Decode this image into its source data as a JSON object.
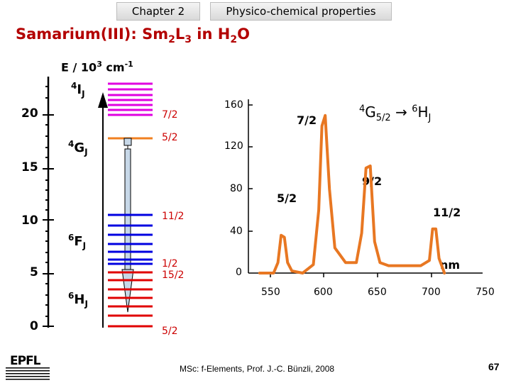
{
  "header": {
    "chapter": "Chapter 2",
    "section": "Physico-chemical properties"
  },
  "title": {
    "pre": "Samarium(III): Sm",
    "s1": "2",
    "mid": "L",
    "s2": "3",
    "mid2": " in H",
    "s3": "2",
    "post": "O"
  },
  "energy_axis": {
    "label_pre": "E / 10",
    "label_exp": "3",
    "label_mid": " cm",
    "label_exp2": "-1",
    "ticks": [
      "20",
      "15",
      "10",
      "5",
      "0"
    ]
  },
  "terms": {
    "i": {
      "sup": "4",
      "main": "I",
      "sub": "J"
    },
    "g": {
      "sup": "4",
      "main": "G",
      "sub": "J"
    },
    "f": {
      "sup": "6",
      "main": "F",
      "sub": "J"
    },
    "h": {
      "sup": "6",
      "main": "H",
      "sub": "J"
    }
  },
  "level_labels": [
    "7/2",
    "5/2",
    "11/2",
    "1/2",
    "15/2",
    "5/2"
  ],
  "colors": {
    "magenta": "#e000e0",
    "orange": "#f08020",
    "blue": "#0000e0",
    "red": "#e00000",
    "spectrum": "#e87722"
  },
  "spectrum": {
    "transition": {
      "sup1": "4",
      "main1": "G",
      "sub1": "5/2",
      "arrow": "→",
      "sup2": "6",
      "main2": "H",
      "sub2": "J"
    },
    "y_ticks": [
      "160",
      "120",
      "80",
      "40",
      "0"
    ],
    "x_ticks": [
      "550",
      "600",
      "650",
      "700",
      "750"
    ],
    "unit": "nm",
    "band_labels": [
      "7/2",
      "5/2",
      "9/2",
      "11/2"
    ]
  },
  "footer": "MSc: f-Elements,  Prof. J.-C. Bünzli, 2008",
  "page_number": "67",
  "logo_icon": "epfl-logo-icon",
  "chart_data": {
    "type": "line",
    "xlabel": "nm",
    "xlim": [
      540,
      740
    ],
    "ylim": [
      0,
      170
    ],
    "x": [
      540,
      553,
      557,
      560,
      563,
      566,
      570,
      580,
      590,
      595,
      598,
      601,
      605,
      610,
      620,
      630,
      635,
      639,
      643,
      647,
      652,
      660,
      670,
      680,
      690,
      698,
      701,
      704,
      707,
      712
    ],
    "values": [
      0,
      0,
      10,
      36,
      34,
      10,
      2,
      0,
      8,
      60,
      140,
      150,
      80,
      24,
      10,
      10,
      38,
      100,
      102,
      30,
      10,
      7,
      7,
      7,
      7,
      12,
      42,
      42,
      14,
      0
    ],
    "annotations": [
      "7/2",
      "5/2",
      "9/2",
      "11/2"
    ]
  }
}
